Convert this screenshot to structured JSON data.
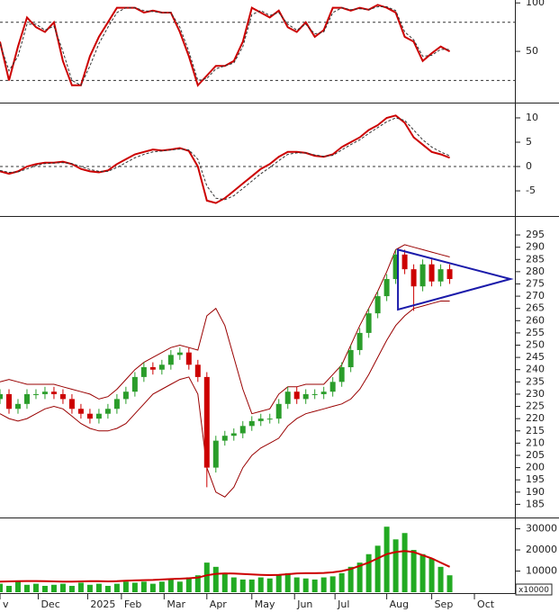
{
  "chart_data": [
    {
      "type": "line",
      "x": [
        0,
        4,
        8,
        12,
        16,
        20,
        24,
        28,
        32,
        36,
        40,
        44,
        48,
        52,
        56,
        60,
        64,
        68,
        72,
        76,
        80,
        84,
        88,
        92,
        96,
        100,
        104,
        108,
        112,
        116,
        120,
        124,
        128,
        132,
        136,
        140,
        144,
        148,
        152,
        156,
        160,
        164,
        168,
        172,
        176,
        180,
        184,
        188,
        192,
        196,
        200
      ],
      "xlim": [
        0,
        229
      ],
      "ylim": [
        -1,
        103
      ],
      "yticks": [
        50,
        100
      ],
      "hlines": [
        80,
        20
      ],
      "series": [
        {
          "color": "#cc0000",
          "values": [
            60,
            20,
            55,
            85,
            75,
            70,
            80,
            40,
            15,
            15,
            45,
            65,
            80,
            95,
            95,
            95,
            90,
            92,
            90,
            90,
            70,
            45,
            15,
            25,
            35,
            35,
            40,
            60,
            95,
            90,
            85,
            92,
            75,
            70,
            80,
            65,
            72,
            95,
            95,
            92,
            95,
            93,
            98,
            95,
            90,
            65,
            60,
            40,
            48,
            55,
            50
          ]
        },
        {
          "color": "#333333",
          "dashed": true,
          "values": [
            58,
            30,
            45,
            78,
            78,
            72,
            76,
            50,
            20,
            15,
            35,
            58,
            75,
            90,
            95,
            95,
            92,
            91,
            90,
            90,
            75,
            50,
            20,
            22,
            32,
            35,
            38,
            55,
            88,
            92,
            87,
            90,
            78,
            72,
            78,
            68,
            70,
            90,
            95,
            93,
            94,
            93,
            96,
            96,
            92,
            70,
            62,
            45,
            46,
            52,
            52
          ]
        }
      ]
    },
    {
      "type": "line",
      "x": [
        0,
        4,
        8,
        12,
        16,
        20,
        24,
        28,
        32,
        36,
        40,
        44,
        48,
        52,
        56,
        60,
        64,
        68,
        72,
        76,
        80,
        84,
        88,
        92,
        96,
        100,
        104,
        108,
        112,
        116,
        120,
        124,
        128,
        132,
        136,
        140,
        144,
        148,
        152,
        156,
        160,
        164,
        168,
        172,
        176,
        180,
        184,
        188,
        192,
        196,
        200
      ],
      "xlim": [
        0,
        229
      ],
      "ylim": [
        -9.8,
        12.4
      ],
      "yticks": [
        -5,
        0,
        5,
        10
      ],
      "hlines": [
        0
      ],
      "series": [
        {
          "color": "#cc0000",
          "values": [
            -1,
            -1.5,
            -1,
            0,
            0.5,
            0.8,
            0.8,
            1,
            0.5,
            -0.5,
            -1,
            -1.2,
            -0.8,
            0.5,
            1.5,
            2.5,
            3,
            3.5,
            3.3,
            3.5,
            3.8,
            3.2,
            0,
            -7,
            -7.5,
            -6.5,
            -5,
            -3.5,
            -2,
            -0.5,
            0.5,
            2,
            3,
            3,
            2.8,
            2.2,
            2,
            2.5,
            4,
            5,
            6,
            7.5,
            8.5,
            10,
            10.5,
            9,
            6,
            4.5,
            3,
            2.5,
            1.8
          ]
        },
        {
          "color": "#333333",
          "dashed": true,
          "values": [
            -0.8,
            -1.2,
            -1.1,
            -0.5,
            0.2,
            0.6,
            0.7,
            0.8,
            0.6,
            0,
            -0.6,
            -1,
            -1,
            -0.2,
            0.8,
            1.8,
            2.5,
            3,
            3.2,
            3.4,
            3.6,
            3.4,
            1.5,
            -4,
            -6.5,
            -6.8,
            -6,
            -4.5,
            -3,
            -1.5,
            -0.2,
            1.2,
            2.5,
            2.8,
            2.8,
            2.4,
            2.1,
            2.3,
            3.4,
            4.5,
            5.5,
            6.8,
            8,
            9.2,
            10,
            9.5,
            7.5,
            5.5,
            4,
            3,
            2.2
          ]
        }
      ]
    },
    {
      "type": "candlestick",
      "x": [
        0,
        4,
        8,
        12,
        16,
        20,
        24,
        28,
        32,
        36,
        40,
        44,
        48,
        52,
        56,
        60,
        64,
        68,
        72,
        76,
        80,
        84,
        88,
        92,
        96,
        100,
        104,
        108,
        112,
        116,
        120,
        124,
        128,
        132,
        136,
        140,
        144,
        148,
        152,
        156,
        160,
        164,
        168,
        172,
        176,
        180,
        184,
        188,
        192,
        196,
        200
      ],
      "xlim": [
        0,
        229
      ],
      "ylim": [
        180,
        302
      ],
      "yticks": [
        185,
        190,
        195,
        200,
        205,
        210,
        215,
        220,
        225,
        230,
        235,
        240,
        245,
        250,
        255,
        260,
        265,
        270,
        275,
        280,
        285,
        290,
        295
      ],
      "up_color": "#2a9d2a",
      "down_color": "#cc0000",
      "open": [
        228,
        230,
        224,
        226,
        230,
        230,
        231,
        230,
        228,
        224,
        222,
        220,
        222,
        224,
        228,
        231,
        237,
        241,
        240,
        242,
        246,
        247,
        242,
        237,
        200,
        211,
        213,
        214,
        217,
        219,
        220,
        220,
        226,
        231,
        228,
        230,
        230,
        231,
        235,
        241,
        248,
        255,
        263,
        270,
        277,
        287,
        281,
        274,
        283,
        276,
        281
      ],
      "high": [
        232,
        232,
        228,
        232,
        232,
        233,
        233,
        232,
        230,
        226,
        224,
        224,
        226,
        230,
        233,
        239,
        243,
        243,
        244,
        248,
        249,
        249,
        244,
        239,
        213,
        215,
        216,
        219,
        221,
        222,
        222,
        228,
        233,
        233,
        232,
        232,
        233,
        237,
        243,
        250,
        257,
        265,
        272,
        279,
        289,
        289,
        283,
        285,
        285,
        283,
        283
      ],
      "low": [
        226,
        222,
        222,
        224,
        228,
        228,
        228,
        226,
        222,
        220,
        218,
        218,
        220,
        222,
        226,
        229,
        235,
        238,
        238,
        240,
        244,
        240,
        235,
        192,
        198,
        209,
        211,
        212,
        215,
        217,
        218,
        218,
        224,
        226,
        226,
        228,
        228,
        229,
        233,
        239,
        246,
        253,
        261,
        268,
        275,
        279,
        264,
        272,
        274,
        274,
        275
      ],
      "close": [
        230,
        224,
        226,
        230,
        230,
        231,
        230,
        228,
        224,
        222,
        220,
        222,
        224,
        228,
        231,
        237,
        241,
        240,
        242,
        246,
        247,
        242,
        237,
        200,
        211,
        213,
        214,
        217,
        219,
        220,
        220,
        226,
        231,
        228,
        230,
        230,
        231,
        235,
        241,
        248,
        255,
        263,
        270,
        277,
        287,
        281,
        274,
        283,
        276,
        281,
        277
      ],
      "bands": [
        {
          "color": "#990000",
          "values": [
            235,
            236,
            235,
            234,
            234,
            234,
            234,
            233,
            232,
            231,
            230,
            228,
            229,
            232,
            236,
            240,
            243,
            245,
            247,
            249,
            250,
            249,
            248,
            262,
            265,
            258,
            245,
            232,
            222,
            223,
            224,
            230,
            233,
            233,
            234,
            234,
            234,
            238,
            242,
            250,
            258,
            265,
            272,
            280,
            289,
            291,
            290,
            289,
            288,
            287,
            286
          ]
        },
        {
          "color": "#990000",
          "values": [
            222,
            220,
            219,
            220,
            222,
            224,
            225,
            224,
            221,
            218,
            216,
            215,
            215,
            216,
            218,
            222,
            226,
            230,
            232,
            234,
            236,
            237,
            230,
            200,
            190,
            188,
            192,
            200,
            205,
            208,
            210,
            212,
            217,
            220,
            222,
            223,
            224,
            225,
            226,
            228,
            232,
            238,
            245,
            252,
            258,
            262,
            265,
            266,
            267,
            268,
            268
          ]
        }
      ],
      "triangle": {
        "color": "#1a1aaa",
        "x": [
          177,
          227,
          177
        ],
        "y": [
          289,
          277,
          264.5
        ]
      }
    },
    {
      "type": "bar",
      "x": [
        0,
        4,
        8,
        12,
        16,
        20,
        24,
        28,
        32,
        36,
        40,
        44,
        48,
        52,
        56,
        60,
        64,
        68,
        72,
        76,
        80,
        84,
        88,
        92,
        96,
        100,
        104,
        108,
        112,
        116,
        120,
        124,
        128,
        132,
        136,
        140,
        144,
        148,
        152,
        156,
        160,
        164,
        168,
        172,
        176,
        180,
        184,
        188,
        192,
        196,
        200
      ],
      "xlim": [
        0,
        229
      ],
      "ylim": [
        0,
        34500
      ],
      "yticks": [
        10000,
        20000,
        30000
      ],
      "unit_label": "x10000",
      "color": "#22aa22",
      "values": [
        4000,
        3000,
        5000,
        3500,
        4000,
        3000,
        3500,
        4000,
        3000,
        4500,
        3500,
        4000,
        3000,
        4000,
        5000,
        4500,
        5000,
        4000,
        5000,
        6000,
        5000,
        7000,
        8000,
        14000,
        12000,
        9000,
        7000,
        6000,
        6000,
        7000,
        6500,
        8000,
        9000,
        7000,
        6500,
        6000,
        7000,
        7500,
        9000,
        12000,
        14000,
        18000,
        22000,
        31000,
        25000,
        28000,
        20000,
        18000,
        16000,
        12000,
        8000
      ],
      "ma": {
        "color": "#cc0000",
        "values": [
          5000,
          5100,
          5200,
          5300,
          5300,
          5200,
          5100,
          5000,
          5000,
          5100,
          5200,
          5200,
          5100,
          5200,
          5400,
          5600,
          5700,
          5800,
          6000,
          6200,
          6400,
          6600,
          6900,
          8000,
          8700,
          8900,
          8800,
          8600,
          8400,
          8200,
          8100,
          8200,
          8500,
          8900,
          9000,
          9000,
          9100,
          9400,
          10000,
          11000,
          12500,
          14000,
          16000,
          18000,
          19000,
          19500,
          19000,
          17500,
          16000,
          14000,
          12000
        ]
      },
      "xticks": [
        {
          "value": 0,
          "label": "v"
        },
        {
          "value": 17,
          "label": "Dec"
        },
        {
          "value": 39,
          "label": "2025"
        },
        {
          "value": 54,
          "label": "Feb"
        },
        {
          "value": 73,
          "label": "Mar"
        },
        {
          "value": 92,
          "label": "Apr"
        },
        {
          "value": 112,
          "label": "May"
        },
        {
          "value": 131,
          "label": "Jun"
        },
        {
          "value": 149,
          "label": "Jul"
        },
        {
          "value": 172,
          "label": "Aug"
        },
        {
          "value": 192,
          "label": "Sep"
        },
        {
          "value": 211,
          "label": "Oct"
        }
      ]
    }
  ]
}
